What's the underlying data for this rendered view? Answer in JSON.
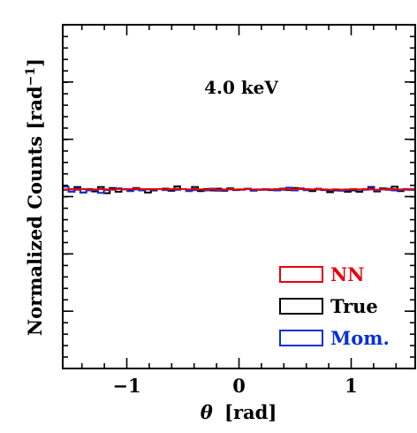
{
  "chart_data": {
    "type": "step-histogram",
    "annotation": "4.0 keV",
    "xlabel_symbol": "θ",
    "xlabel_unit": "[rad]",
    "ylabel_main": "Normalized Counts [rad",
    "ylabel_exp": "−1",
    "ylabel_close": "]",
    "xlim": [
      -1.571,
      1.571
    ],
    "ylim": [
      0,
      1.0
    ],
    "xticks": [
      {
        "value": -1,
        "label": "−1"
      },
      {
        "value": 0,
        "label": "0"
      },
      {
        "value": 1,
        "label": "1"
      }
    ],
    "x_minor_step": 0.2,
    "y_major_step": 0.1667,
    "y_minor_step": 0.0333,
    "y_tick_labels_shown": false,
    "bin_count": 60,
    "legend": {
      "position": "lower-right",
      "entries": [
        {
          "label": "NN",
          "color": "#e8000b",
          "label_color": "#e8000b"
        },
        {
          "label": "True",
          "color": "#000000",
          "label_color": "#000000"
        },
        {
          "label": "Mom.",
          "color": "#0a2fd6",
          "label_color": "#0a2fd6"
        }
      ]
    },
    "series": [
      {
        "name": "NN",
        "color": "#e8000b",
        "values": [
          0.521,
          0.522,
          0.52,
          0.522,
          0.521,
          0.52,
          0.522,
          0.521,
          0.52,
          0.522,
          0.521,
          0.522,
          0.523,
          0.522,
          0.521,
          0.522,
          0.522,
          0.521,
          0.522,
          0.523,
          0.522,
          0.521,
          0.522,
          0.521,
          0.52,
          0.521,
          0.52,
          0.521,
          0.522,
          0.521,
          0.521,
          0.522,
          0.521,
          0.52,
          0.522,
          0.521,
          0.522,
          0.522,
          0.521,
          0.522,
          0.523,
          0.522,
          0.521,
          0.522,
          0.521,
          0.52,
          0.521,
          0.52,
          0.521,
          0.522,
          0.521,
          0.522,
          0.521,
          0.52,
          0.522,
          0.521,
          0.522,
          0.521,
          0.52,
          0.522
        ]
      },
      {
        "name": "True",
        "color": "#000000",
        "values": [
          0.52,
          0.515,
          0.528,
          0.512,
          0.522,
          0.515,
          0.528,
          0.51,
          0.525,
          0.514,
          0.522,
          0.519,
          0.525,
          0.52,
          0.512,
          0.518,
          0.522,
          0.523,
          0.517,
          0.53,
          0.522,
          0.52,
          0.528,
          0.516,
          0.522,
          0.518,
          0.523,
          0.517,
          0.524,
          0.519,
          0.521,
          0.523,
          0.518,
          0.52,
          0.522,
          0.519,
          0.521,
          0.523,
          0.519,
          0.525,
          0.524,
          0.519,
          0.516,
          0.521,
          0.519,
          0.513,
          0.518,
          0.52,
          0.514,
          0.518,
          0.514,
          0.521,
          0.528,
          0.515,
          0.524,
          0.52,
          0.529,
          0.516,
          0.522,
          0.52
        ]
      },
      {
        "name": "Mom.",
        "color": "#0a2fd6",
        "values": [
          0.529,
          0.514,
          0.524,
          0.512,
          0.518,
          0.521,
          0.511,
          0.519,
          0.522,
          0.524,
          0.522,
          0.516,
          0.521,
          0.518,
          0.522,
          0.52,
          0.522,
          0.519,
          0.521,
          0.52,
          0.522,
          0.516,
          0.519,
          0.521,
          0.518,
          0.523,
          0.517,
          0.519,
          0.521,
          0.52,
          0.52,
          0.523,
          0.517,
          0.521,
          0.52,
          0.521,
          0.518,
          0.52,
          0.526,
          0.518,
          0.522,
          0.519,
          0.521,
          0.523,
          0.52,
          0.518,
          0.521,
          0.517,
          0.519,
          0.521,
          0.52,
          0.52,
          0.525,
          0.518,
          0.521,
          0.523,
          0.518,
          0.519,
          0.522,
          0.52
        ]
      }
    ]
  }
}
